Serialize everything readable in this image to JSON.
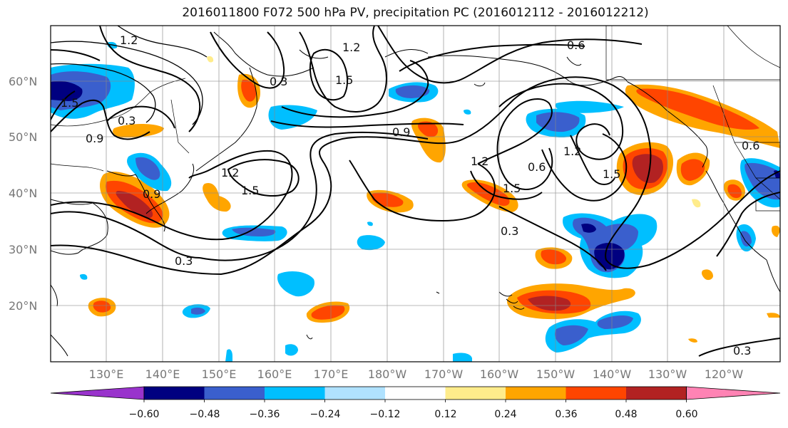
{
  "title": "2016011800 F072 500 hPa PV, precipitation PC (2016012112 - 2016012212)",
  "lat_labels": [
    "60°N",
    "50°N",
    "40°N",
    "30°N",
    "20°N"
  ],
  "lon_labels": [
    "130°E",
    "140°E",
    "150°E",
    "160°E",
    "170°E",
    "180°W",
    "170°W",
    "160°W",
    "150°W",
    "140°W",
    "130°W",
    "120°W"
  ],
  "colorbar": {
    "tick_labels": [
      "−0.60",
      "−0.48",
      "−0.36",
      "−0.24",
      "−0.12",
      "0.12",
      "0.24",
      "0.36",
      "0.48",
      "0.60"
    ],
    "colors": [
      "#9933cc",
      "#000080",
      "#3a5fcd",
      "#00bfff",
      "#b0e2ff",
      "#ffffff",
      "#ffec8b",
      "#ffa500",
      "#ff4500",
      "#b22222",
      "#ff83b4"
    ]
  },
  "contour_labels": [
    "1.2",
    "0.6",
    "1.2",
    "1.5",
    "0.9",
    "0.3",
    "1.5",
    "0.9",
    "0.3",
    "1.2",
    "1.5",
    "0.9",
    "1.2",
    "1.5",
    "0.6",
    "1.2",
    "1.5",
    "0.3",
    "0.3",
    "0.3",
    "0.6"
  ]
}
